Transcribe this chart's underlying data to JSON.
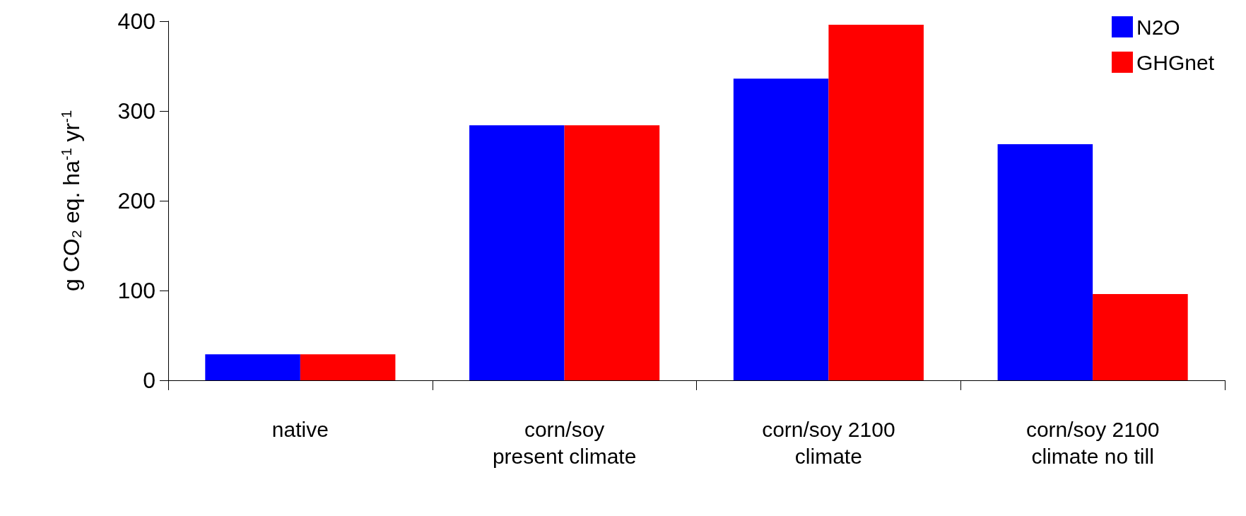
{
  "chart_data": {
    "type": "bar",
    "ylabel": "g CO₂ eq. ha$^{-1}$ yr$^{-1}$",
    "categories": [
      "native",
      "corn/soy\npresent climate",
      "corn/soy 2100\nclimate",
      "corn/soy 2100\nclimate no till"
    ],
    "series": [
      {
        "name": "N2O",
        "color": "#0000ff",
        "values": [
          29,
          284,
          336,
          263
        ]
      },
      {
        "name": "GHGnet",
        "color": "#ff0000",
        "values": [
          29,
          284,
          396,
          96
        ]
      }
    ],
    "ylim": [
      0,
      400
    ],
    "yticks": [
      0,
      100,
      200,
      300,
      400
    ],
    "grid": false,
    "legend": "top right"
  }
}
